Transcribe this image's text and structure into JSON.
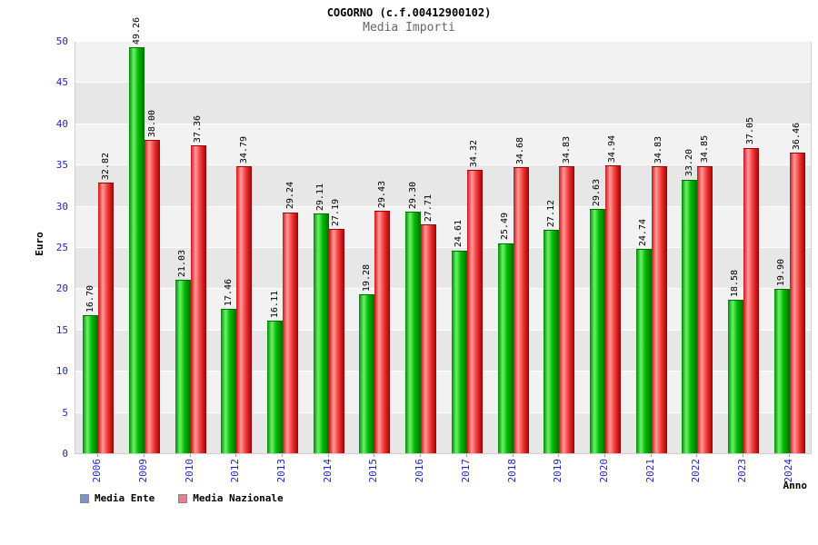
{
  "header": {
    "title": "COGORNO (c.f.00412900102)",
    "subtitle": "Media Importi"
  },
  "chart_data": {
    "type": "bar",
    "title": "COGORNO (c.f.00412900102)",
    "subtitle": "Media Importi",
    "xlabel": "Anno",
    "ylabel": "Euro",
    "ylim": [
      0,
      50
    ],
    "ytick_step": 5,
    "grid": true,
    "legend_position": "bottom-left",
    "categories": [
      "2006",
      "2009",
      "2010",
      "2012",
      "2013",
      "2014",
      "2015",
      "2016",
      "2017",
      "2018",
      "2019",
      "2020",
      "2021",
      "2022",
      "2023",
      "2024"
    ],
    "series": [
      {
        "name": "Media Ente",
        "values": [
          16.7,
          49.26,
          21.03,
          17.46,
          16.11,
          29.11,
          19.28,
          29.3,
          24.61,
          25.49,
          27.12,
          29.63,
          24.74,
          33.2,
          18.58,
          19.9
        ]
      },
      {
        "name": "Media Nazionale",
        "values": [
          32.82,
          38.0,
          37.36,
          34.79,
          29.24,
          27.19,
          29.43,
          27.71,
          34.32,
          34.68,
          34.83,
          34.94,
          34.83,
          34.85,
          37.05,
          36.46
        ]
      }
    ],
    "colors": {
      "ente_bar": [
        "#008a00",
        "#6cf26c",
        "#00b800",
        "#006e00"
      ],
      "nazionale_bar": [
        "#c81616",
        "#ff9a9a",
        "#f23a3a",
        "#a00000"
      ],
      "axis_label": "#2424c8",
      "value_label": "#000000",
      "band_a": "#e7e7e7",
      "band_b": "#f2f2f2",
      "legend_ente_swatch": "#7a96c8",
      "legend_nazionale_swatch": "#e4808f"
    }
  }
}
